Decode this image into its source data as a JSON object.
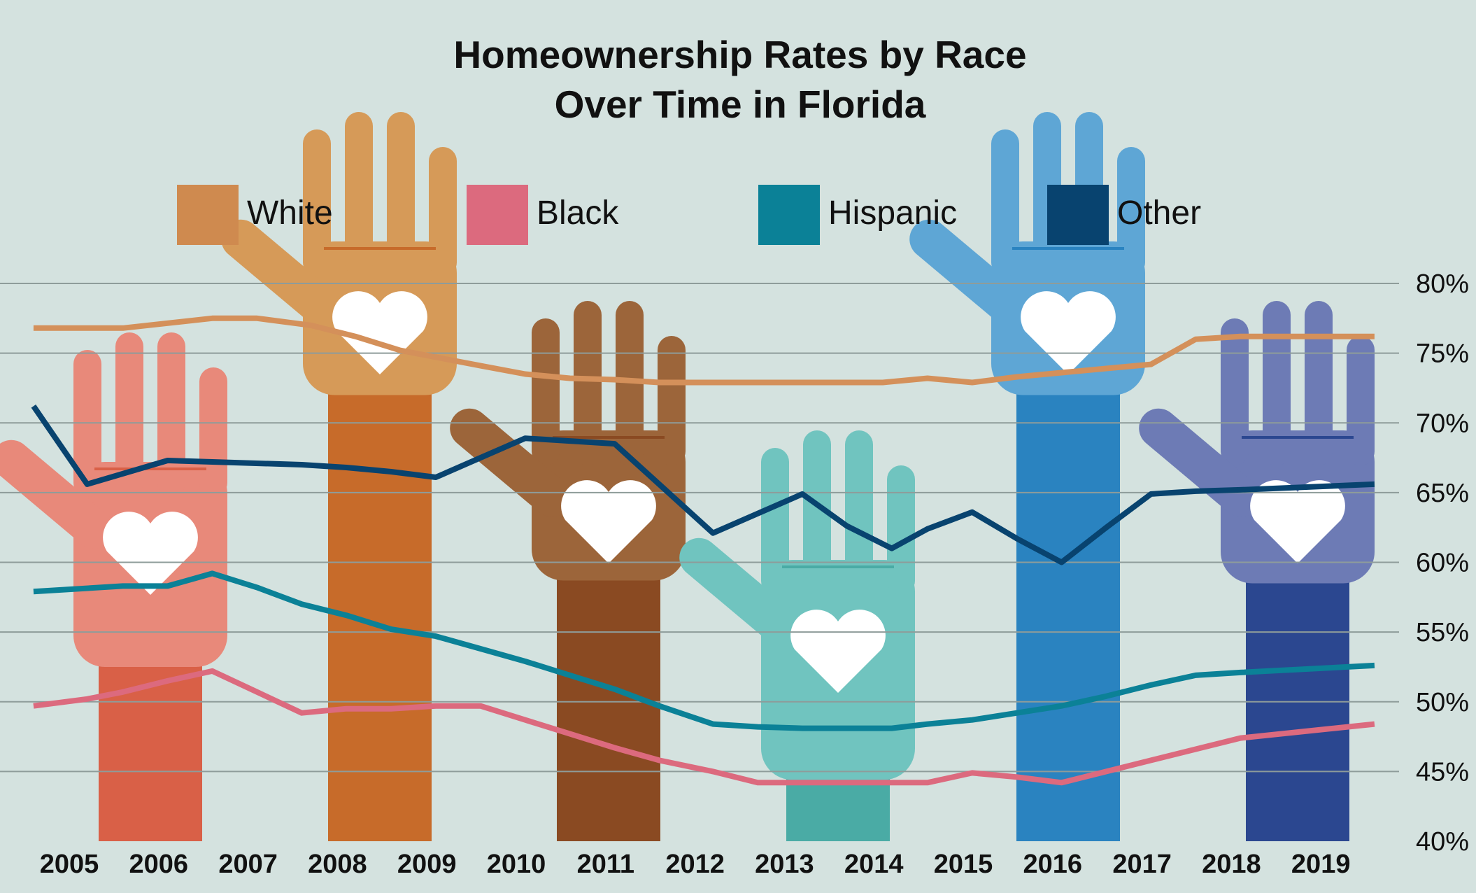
{
  "chart_data": {
    "type": "line",
    "title": "Homeownership Rates by Race",
    "subtitle": "Over Time in Florida",
    "x": [
      "2005",
      "2006",
      "2007",
      "2008",
      "2009",
      "2010",
      "2011",
      "2012",
      "2013",
      "2014",
      "2015",
      "2016",
      "2017",
      "2018",
      "2019"
    ],
    "y_ticks": [
      "80%",
      "75%",
      "70%",
      "65%",
      "60%",
      "55%",
      "50%",
      "45%",
      "40%"
    ],
    "ylim": [
      40,
      80
    ],
    "grid": true,
    "legend_placement": "top",
    "series": [
      {
        "name": "White",
        "color": "#d4905a",
        "points": [
          [
            2004.6,
            76.8
          ],
          [
            2005.6,
            76.8
          ],
          [
            2006.6,
            77.5
          ],
          [
            2007.1,
            77.5
          ],
          [
            2007.7,
            77.0
          ],
          [
            2008.2,
            76.2
          ],
          [
            2008.7,
            75.2
          ],
          [
            2009.6,
            74.1
          ],
          [
            2010.1,
            73.5
          ],
          [
            2010.6,
            73.2
          ],
          [
            2011.1,
            73.1
          ],
          [
            2011.6,
            72.9
          ],
          [
            2012.2,
            72.9
          ],
          [
            2012.7,
            72.9
          ],
          [
            2013.2,
            72.9
          ],
          [
            2013.7,
            72.9
          ],
          [
            2014.1,
            72.9
          ],
          [
            2014.6,
            73.2
          ],
          [
            2015.1,
            72.9
          ],
          [
            2015.6,
            73.3
          ],
          [
            2016.1,
            73.6
          ],
          [
            2016.6,
            73.9
          ],
          [
            2017.1,
            74.2
          ],
          [
            2017.6,
            76.0
          ],
          [
            2018.1,
            76.2
          ],
          [
            2019.6,
            76.2
          ]
        ]
      },
      {
        "name": "Black",
        "color": "#dc6a7e",
        "points": [
          [
            2004.6,
            49.7
          ],
          [
            2005.2,
            50.2
          ],
          [
            2005.6,
            50.7
          ],
          [
            2006.1,
            51.5
          ],
          [
            2006.6,
            52.2
          ],
          [
            2007.1,
            50.7
          ],
          [
            2007.6,
            49.2
          ],
          [
            2008.1,
            49.5
          ],
          [
            2008.6,
            49.5
          ],
          [
            2009.1,
            49.7
          ],
          [
            2009.6,
            49.7
          ],
          [
            2010.1,
            48.7
          ],
          [
            2010.6,
            47.7
          ],
          [
            2011.1,
            46.7
          ],
          [
            2011.6,
            45.8
          ],
          [
            2012.2,
            45.0
          ],
          [
            2012.7,
            44.2
          ],
          [
            2013.2,
            44.2
          ],
          [
            2013.7,
            44.2
          ],
          [
            2014.2,
            44.2
          ],
          [
            2014.6,
            44.2
          ],
          [
            2015.1,
            44.9
          ],
          [
            2015.6,
            44.6
          ],
          [
            2016.1,
            44.2
          ],
          [
            2016.6,
            45.0
          ],
          [
            2017.1,
            45.8
          ],
          [
            2017.6,
            46.6
          ],
          [
            2018.1,
            47.4
          ],
          [
            2019.6,
            48.4
          ]
        ]
      },
      {
        "name": "Hispanic",
        "color": "#0b8197",
        "points": [
          [
            2004.6,
            57.9
          ],
          [
            2005.6,
            58.3
          ],
          [
            2006.1,
            58.3
          ],
          [
            2006.6,
            59.2
          ],
          [
            2007.1,
            58.2
          ],
          [
            2007.6,
            57.0
          ],
          [
            2008.1,
            56.2
          ],
          [
            2008.6,
            55.2
          ],
          [
            2009.1,
            54.7
          ],
          [
            2009.6,
            53.8
          ],
          [
            2010.1,
            52.9
          ],
          [
            2010.6,
            51.9
          ],
          [
            2011.1,
            50.9
          ],
          [
            2011.6,
            49.7
          ],
          [
            2012.2,
            48.4
          ],
          [
            2012.7,
            48.2
          ],
          [
            2013.2,
            48.1
          ],
          [
            2013.7,
            48.1
          ],
          [
            2014.2,
            48.1
          ],
          [
            2014.6,
            48.4
          ],
          [
            2015.1,
            48.7
          ],
          [
            2015.6,
            49.2
          ],
          [
            2016.1,
            49.7
          ],
          [
            2016.6,
            50.4
          ],
          [
            2017.1,
            51.2
          ],
          [
            2017.6,
            51.9
          ],
          [
            2018.1,
            52.1
          ],
          [
            2019.6,
            52.6
          ]
        ]
      },
      {
        "name": "Other",
        "color": "#08436f",
        "points": [
          [
            2004.6,
            71.2
          ],
          [
            2005.2,
            65.6
          ],
          [
            2006.1,
            67.3
          ],
          [
            2006.6,
            67.2
          ],
          [
            2007.6,
            67.0
          ],
          [
            2008.1,
            66.8
          ],
          [
            2008.6,
            66.5
          ],
          [
            2009.1,
            66.1
          ],
          [
            2009.6,
            67.5
          ],
          [
            2010.1,
            68.9
          ],
          [
            2011.1,
            68.5
          ],
          [
            2012.2,
            62.1
          ],
          [
            2012.7,
            63.5
          ],
          [
            2013.2,
            64.9
          ],
          [
            2013.7,
            62.6
          ],
          [
            2014.2,
            61.0
          ],
          [
            2014.6,
            62.4
          ],
          [
            2015.1,
            63.6
          ],
          [
            2015.6,
            61.7
          ],
          [
            2016.1,
            60.0
          ],
          [
            2016.6,
            62.5
          ],
          [
            2017.1,
            64.9
          ],
          [
            2017.6,
            65.1
          ],
          [
            2018.1,
            65.2
          ],
          [
            2019.6,
            65.6
          ]
        ]
      }
    ]
  },
  "decoration": {
    "background": "#d4e2df",
    "gridline_color": "#8e9c9a",
    "hands": [
      {
        "name": "hand-2005-2006",
        "color": "#e8897a",
        "arm_color": "#d96047",
        "level": 53.5
      },
      {
        "name": "hand-2008-2009",
        "color": "#d69a58",
        "arm_color": "#c76b2a",
        "level": 73
      },
      {
        "name": "hand-2011-2012",
        "color": "#9c653a",
        "arm_color": "#8a4a22",
        "level": 59.7
      },
      {
        "name": "hand-2013-2014",
        "color": "#70c4bf",
        "arm_color": "#4aaba5",
        "level": 45.4
      },
      {
        "name": "hand-2016-2017",
        "color": "#5ea6d5",
        "arm_color": "#2a83c0",
        "level": 73
      },
      {
        "name": "hand-2018-2019",
        "color": "#6d7bb5",
        "arm_color": "#2b4790",
        "level": 59.5
      }
    ]
  }
}
